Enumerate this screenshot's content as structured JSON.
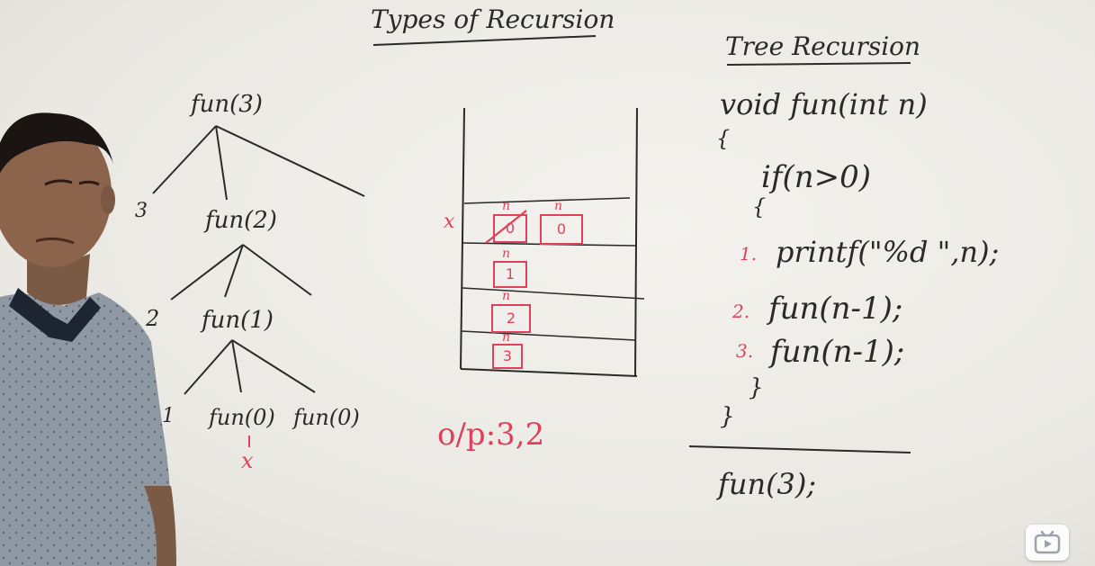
{
  "title": "Types of Recursion",
  "subtitle": "Tree Recursion",
  "tree": {
    "root": "fun(3)",
    "level2": "fun(2)",
    "level3": "fun(1)",
    "leaf_left": "fun(0)",
    "leaf_right": "fun(0)",
    "mark_x": "x",
    "out3": "3",
    "out2": "2",
    "out1": "1"
  },
  "stack": {
    "frames": [
      "0",
      "0",
      "1",
      "2",
      "3"
    ],
    "var_label": "n",
    "cross_mark": "x"
  },
  "output": "o/p:3,2",
  "code": {
    "line1": "void fun(int n)",
    "brace_open": "{",
    "line2": "if(n>0)",
    "brace_open2": "{",
    "step1_num": "1.",
    "step1": "printf(\"%d \",n);",
    "step2_num": "2.",
    "step2": "fun(n-1);",
    "step3_num": "3.",
    "step3": "fun(n-1);",
    "brace_close2": "}",
    "brace_close": "}",
    "call": "fun(3);"
  },
  "colors": {
    "marker_black": "#2a2a2a",
    "marker_red": "#e0415a",
    "board": "#efeeea"
  },
  "icons": {
    "player": "play-icon"
  }
}
